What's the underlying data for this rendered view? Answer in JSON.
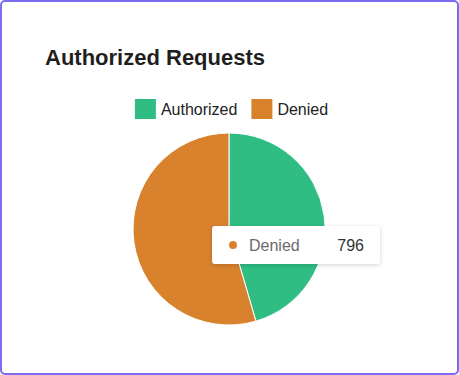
{
  "chart_data": {
    "type": "pie",
    "title": "Authorized Requests",
    "categories": [
      "Authorized",
      "Denied"
    ],
    "values": [
      664,
      796
    ],
    "colors": [
      "#2fbd84",
      "#d9822e"
    ],
    "legend": "top"
  }
}
